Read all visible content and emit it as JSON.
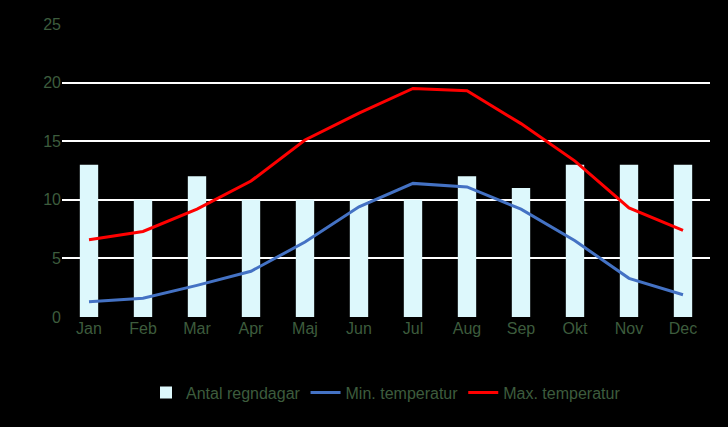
{
  "chart_data": {
    "type": "bar",
    "categories": [
      "Jan",
      "Feb",
      "Mar",
      "Apr",
      "Maj",
      "Jun",
      "Jul",
      "Aug",
      "Sep",
      "Okt",
      "Nov",
      "Dec"
    ],
    "series": [
      {
        "name": "Antal regndagar",
        "type": "bar",
        "color": "#ddf8fc",
        "values": [
          13,
          10,
          12,
          10,
          10,
          10,
          10,
          12,
          11,
          13,
          13,
          13
        ]
      },
      {
        "name": "Min. temperatur",
        "type": "line",
        "color": "#4472c4",
        "values": [
          1.3,
          1.6,
          2.7,
          3.9,
          6.4,
          9.4,
          11.4,
          11.1,
          9.2,
          6.5,
          3.3,
          1.9
        ]
      },
      {
        "name": "Max. temperatur",
        "type": "line",
        "color": "#ff0000",
        "values": [
          6.6,
          7.3,
          9.2,
          11.6,
          15.1,
          17.4,
          19.5,
          19.3,
          16.5,
          13.3,
          9.3,
          7.4
        ]
      }
    ],
    "ylim": [
      0,
      25
    ],
    "yticks": [
      0,
      5,
      10,
      15,
      20,
      25
    ],
    "grid": true,
    "legend": "bottom"
  }
}
